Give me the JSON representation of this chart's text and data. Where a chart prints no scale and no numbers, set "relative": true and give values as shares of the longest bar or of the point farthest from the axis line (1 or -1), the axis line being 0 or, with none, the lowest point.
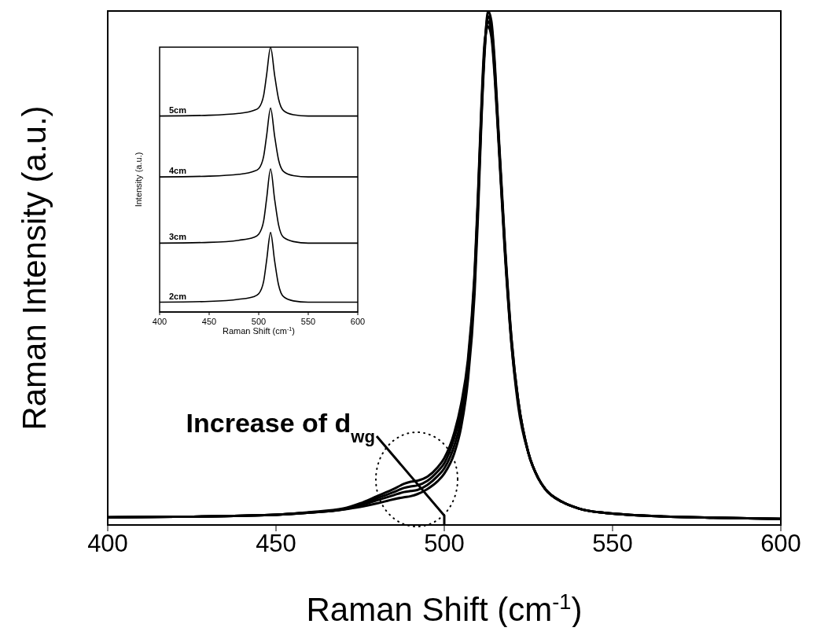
{
  "chart_data": [
    {
      "type": "line",
      "relative": true,
      "xlabel": "Raman Shift (cm$^{-1}$)",
      "ylabel": "Raman Intensity (a.u.)",
      "xlim": [
        400,
        600
      ],
      "xticks": [
        400,
        450,
        500,
        550,
        600
      ],
      "x": [
        400,
        420,
        440,
        450,
        460,
        470,
        475,
        480,
        485,
        488,
        490,
        492,
        495,
        498,
        500,
        503,
        505,
        507,
        509,
        510,
        511,
        512,
        513,
        514,
        515,
        516,
        518,
        520,
        522,
        525,
        528,
        530,
        535,
        540,
        550,
        560,
        580,
        600
      ],
      "series": [
        {
          "color": "#000000",
          "values": [
            0.015,
            0.016,
            0.018,
            0.02,
            0.024,
            0.03,
            0.035,
            0.042,
            0.05,
            0.054,
            0.056,
            0.06,
            0.07,
            0.085,
            0.1,
            0.14,
            0.19,
            0.28,
            0.45,
            0.6,
            0.78,
            0.92,
            1,
            0.98,
            0.9,
            0.78,
            0.55,
            0.36,
            0.24,
            0.14,
            0.09,
            0.07,
            0.045,
            0.032,
            0.022,
            0.018,
            0.014,
            0.012
          ]
        },
        {
          "color": "#000000",
          "values": [
            0.015,
            0.016,
            0.018,
            0.02,
            0.024,
            0.03,
            0.038,
            0.048,
            0.058,
            0.064,
            0.066,
            0.068,
            0.078,
            0.095,
            0.11,
            0.155,
            0.205,
            0.3,
            0.47,
            0.62,
            0.79,
            0.93,
            0.99,
            0.97,
            0.89,
            0.77,
            0.54,
            0.36,
            0.24,
            0.14,
            0.09,
            0.07,
            0.045,
            0.032,
            0.022,
            0.018,
            0.014,
            0.012
          ]
        },
        {
          "color": "#000000",
          "values": [
            0.015,
            0.016,
            0.018,
            0.02,
            0.024,
            0.031,
            0.04,
            0.052,
            0.064,
            0.072,
            0.075,
            0.077,
            0.086,
            0.104,
            0.12,
            0.17,
            0.22,
            0.31,
            0.48,
            0.63,
            0.8,
            0.93,
            0.98,
            0.96,
            0.88,
            0.77,
            0.54,
            0.35,
            0.24,
            0.14,
            0.09,
            0.07,
            0.045,
            0.032,
            0.022,
            0.018,
            0.014,
            0.012
          ]
        },
        {
          "color": "#000000",
          "values": [
            0.015,
            0.016,
            0.018,
            0.02,
            0.025,
            0.032,
            0.042,
            0.056,
            0.07,
            0.08,
            0.084,
            0.086,
            0.094,
            0.112,
            0.13,
            0.18,
            0.235,
            0.32,
            0.49,
            0.64,
            0.81,
            0.94,
            0.97,
            0.95,
            0.87,
            0.76,
            0.53,
            0.35,
            0.23,
            0.14,
            0.09,
            0.07,
            0.045,
            0.032,
            0.022,
            0.018,
            0.014,
            0.012
          ]
        }
      ],
      "annotations": [
        "Increase of d$_{wg}$"
      ]
    },
    {
      "type": "line",
      "relative": true,
      "xlabel": "Raman Shift (cm$^{-1}$)",
      "ylabel": "Intensity (a.u.)",
      "xlim": [
        400,
        600
      ],
      "xticks": [
        400,
        450,
        500,
        550,
        600
      ],
      "x": [
        400,
        450,
        480,
        495,
        500,
        505,
        508,
        512,
        516,
        520,
        525,
        535,
        550,
        600
      ],
      "series": [
        {
          "name": "2cm",
          "color": "#000000",
          "values": [
            0.037,
            0.04,
            0.048,
            0.058,
            0.069,
            0.116,
            0.195,
            0.3,
            0.195,
            0.103,
            0.058,
            0.042,
            0.037,
            0.037
          ]
        },
        {
          "name": "3cm",
          "color": "#000000",
          "values": [
            0.26,
            0.263,
            0.271,
            0.282,
            0.294,
            0.344,
            0.428,
            0.54,
            0.428,
            0.33,
            0.282,
            0.266,
            0.26,
            0.26
          ]
        },
        {
          "name": "4cm",
          "color": "#000000",
          "values": [
            0.51,
            0.513,
            0.52,
            0.531,
            0.541,
            0.588,
            0.666,
            0.77,
            0.666,
            0.575,
            0.531,
            0.515,
            0.51,
            0.51
          ]
        },
        {
          "name": "5cm",
          "color": "#000000",
          "values": [
            0.74,
            0.743,
            0.75,
            0.761,
            0.771,
            0.818,
            0.896,
            1,
            0.896,
            0.805,
            0.761,
            0.745,
            0.74,
            0.74
          ]
        }
      ]
    }
  ]
}
